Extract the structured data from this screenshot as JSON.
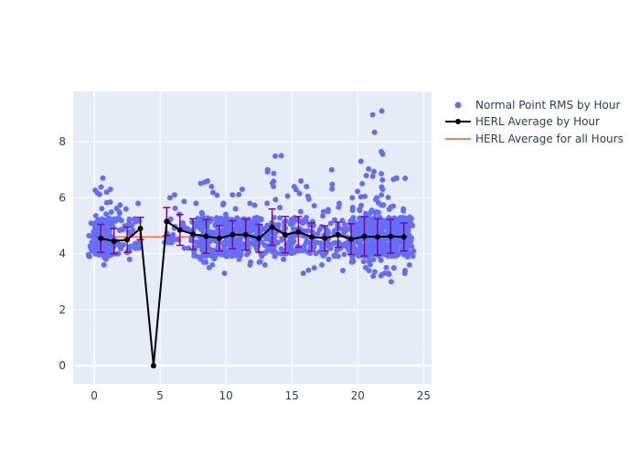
{
  "chart_data": {
    "type": "scatter",
    "title": "",
    "xlabel": "",
    "ylabel": "",
    "xlim": [
      -1.6,
      25.6
    ],
    "ylim": [
      -0.65,
      9.8
    ],
    "x_ticks": [
      0,
      5,
      10,
      15,
      20,
      25
    ],
    "y_ticks": [
      0,
      2,
      4,
      6,
      8
    ],
    "grid": true,
    "legend_position": "right",
    "colors": {
      "plot_bg": "#E5ECF6",
      "grid": "#ffffff",
      "scatter": "#636EFA",
      "average_line": "#000000",
      "error_bars": "#8B008B",
      "overall_line": "#FF7F50"
    },
    "series": [
      {
        "name": "Normal Point RMS by Hour",
        "type": "scatter",
        "clusters": [
          {
            "hour": 0.0,
            "count": 35,
            "min": 3.9,
            "max": 5.2
          },
          {
            "hour": 0.5,
            "count": 60,
            "min": 3.8,
            "max": 6.7
          },
          {
            "hour": 1.0,
            "count": 50,
            "min": 3.6,
            "max": 6.2
          },
          {
            "hour": 1.6,
            "count": 30,
            "min": 4.0,
            "max": 6.3
          },
          {
            "hour": 2.3,
            "count": 18,
            "min": 3.8,
            "max": 5.6
          },
          {
            "hour": 3.0,
            "count": 12,
            "min": 4.2,
            "max": 5.8
          },
          {
            "hour": 5.8,
            "count": 15,
            "min": 4.4,
            "max": 6.0
          },
          {
            "hour": 6.4,
            "count": 10,
            "min": 4.5,
            "max": 6.1
          },
          {
            "hour": 7.0,
            "count": 8,
            "min": 4.2,
            "max": 5.1
          },
          {
            "hour": 7.8,
            "count": 35,
            "min": 3.8,
            "max": 5.8
          },
          {
            "hour": 8.5,
            "count": 50,
            "min": 3.5,
            "max": 6.6
          },
          {
            "hour": 9.0,
            "count": 40,
            "min": 3.6,
            "max": 6.4
          },
          {
            "hour": 9.6,
            "count": 40,
            "min": 3.3,
            "max": 5.3
          },
          {
            "hour": 10.2,
            "count": 55,
            "min": 3.9,
            "max": 5.8
          },
          {
            "hour": 10.7,
            "count": 50,
            "min": 3.8,
            "max": 6.1
          },
          {
            "hour": 11.4,
            "count": 45,
            "min": 3.6,
            "max": 6.3
          },
          {
            "hour": 12.0,
            "count": 35,
            "min": 3.7,
            "max": 5.8
          },
          {
            "hour": 12.7,
            "count": 30,
            "min": 3.6,
            "max": 5.8
          },
          {
            "hour": 13.4,
            "count": 30,
            "min": 3.9,
            "max": 7.0
          },
          {
            "hour": 14.0,
            "count": 25,
            "min": 4.0,
            "max": 7.5
          },
          {
            "hour": 14.8,
            "count": 30,
            "min": 3.8,
            "max": 6.4
          },
          {
            "hour": 15.5,
            "count": 25,
            "min": 4.1,
            "max": 6.6
          },
          {
            "hour": 16.3,
            "count": 25,
            "min": 3.3,
            "max": 6.4
          },
          {
            "hour": 17.0,
            "count": 20,
            "min": 3.6,
            "max": 5.5
          },
          {
            "hour": 17.8,
            "count": 25,
            "min": 3.8,
            "max": 7.0
          },
          {
            "hour": 18.6,
            "count": 25,
            "min": 3.4,
            "max": 5.8
          },
          {
            "hour": 19.4,
            "count": 30,
            "min": 3.7,
            "max": 6.0
          },
          {
            "hour": 20.0,
            "count": 50,
            "min": 3.7,
            "max": 6.5
          },
          {
            "hour": 20.5,
            "count": 60,
            "min": 3.4,
            "max": 7.3
          },
          {
            "hour": 21.0,
            "count": 60,
            "min": 3.5,
            "max": 6.0
          },
          {
            "hour": 21.5,
            "count": 65,
            "min": 3.2,
            "max": 9.1
          },
          {
            "hour": 22.0,
            "count": 60,
            "min": 3.3,
            "max": 6.3
          },
          {
            "hour": 22.6,
            "count": 65,
            "min": 3.0,
            "max": 6.7
          },
          {
            "hour": 23.2,
            "count": 60,
            "min": 3.4,
            "max": 6.7
          },
          {
            "hour": 23.8,
            "count": 45,
            "min": 3.3,
            "max": 5.6
          }
        ]
      },
      {
        "name": "HERL Average by Hour",
        "type": "line",
        "points": [
          {
            "x": 0.5,
            "y": 4.55,
            "err": 0.5
          },
          {
            "x": 1.5,
            "y": 4.45,
            "err": 0.45
          },
          {
            "x": 2.5,
            "y": 4.5,
            "err": 0.45
          },
          {
            "x": 3.5,
            "y": 4.9,
            "err": 0.4
          },
          {
            "x": 4.5,
            "y": 0.0,
            "err": 0
          },
          {
            "x": 5.5,
            "y": 5.15,
            "err": 0.5
          },
          {
            "x": 6.5,
            "y": 4.85,
            "err": 0.55
          },
          {
            "x": 7.5,
            "y": 4.7,
            "err": 0.55
          },
          {
            "x": 8.5,
            "y": 4.62,
            "err": 0.6
          },
          {
            "x": 9.5,
            "y": 4.55,
            "err": 0.45
          },
          {
            "x": 10.5,
            "y": 4.68,
            "err": 0.5
          },
          {
            "x": 11.5,
            "y": 4.68,
            "err": 0.55
          },
          {
            "x": 12.5,
            "y": 4.55,
            "err": 0.5
          },
          {
            "x": 13.5,
            "y": 4.95,
            "err": 0.65
          },
          {
            "x": 14.5,
            "y": 4.68,
            "err": 0.65
          },
          {
            "x": 15.5,
            "y": 4.78,
            "err": 0.55
          },
          {
            "x": 16.5,
            "y": 4.6,
            "err": 0.5
          },
          {
            "x": 17.5,
            "y": 4.55,
            "err": 0.45
          },
          {
            "x": 18.5,
            "y": 4.68,
            "err": 0.45
          },
          {
            "x": 19.5,
            "y": 4.52,
            "err": 0.55
          },
          {
            "x": 20.5,
            "y": 4.62,
            "err": 0.7
          },
          {
            "x": 21.5,
            "y": 4.6,
            "err": 0.65
          },
          {
            "x": 22.5,
            "y": 4.62,
            "err": 0.6
          },
          {
            "x": 23.5,
            "y": 4.6,
            "err": 0.5
          }
        ]
      },
      {
        "name": "HERL Average for all Hours",
        "type": "hline",
        "y": 4.6,
        "x_range": [
          0,
          24
        ]
      }
    ]
  }
}
